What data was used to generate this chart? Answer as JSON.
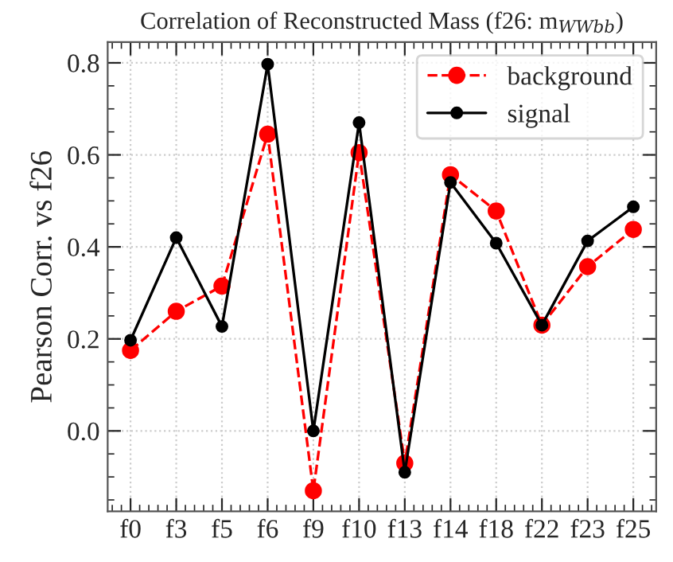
{
  "chart_data": {
    "type": "line",
    "title": "Correlation of Reconstructed Mass (f26: m$_{WWbb}$)",
    "ylabel": "Pearson Corr. vs f26",
    "categories": [
      "f0",
      "f3",
      "f5",
      "f6",
      "f9",
      "f10",
      "f13",
      "f14",
      "f18",
      "f22",
      "f23",
      "f25"
    ],
    "series": [
      {
        "name": "background",
        "color": "#ff0000",
        "line_style": "dashed",
        "values": [
          0.175,
          0.26,
          0.315,
          0.645,
          -0.13,
          0.605,
          -0.07,
          0.557,
          0.478,
          0.23,
          0.357,
          0.438
        ]
      },
      {
        "name": "signal",
        "color": "#000000",
        "line_style": "solid",
        "values": [
          0.197,
          0.42,
          0.227,
          0.797,
          0.0,
          0.67,
          -0.09,
          0.54,
          0.408,
          0.23,
          0.413,
          0.487
        ]
      }
    ],
    "ylim": [
      -0.175,
      0.845
    ],
    "yticks": [
      {
        "value": 0.0,
        "label": "0.0"
      },
      0.2,
      0.4,
      0.6,
      0.8
    ],
    "marker": "circle",
    "grid": true,
    "legend": "top right"
  }
}
